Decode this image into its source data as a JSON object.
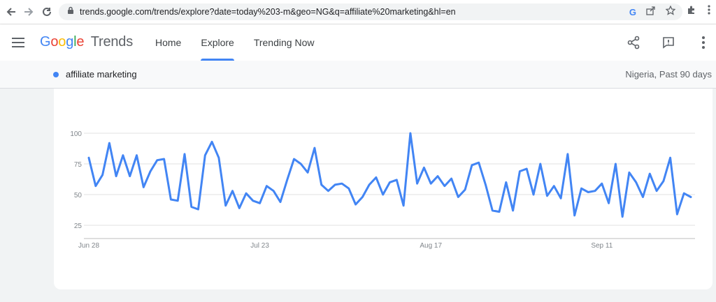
{
  "browser": {
    "url": "trends.google.com/trends/explore?date=today%203-m&geo=NG&q=affiliate%20marketing&hl=en",
    "icons": [
      "back-arrow-icon",
      "forward-arrow-icon",
      "reload-icon",
      "lock-icon",
      "google-lens-icon",
      "share-icon",
      "star-icon",
      "extensions-icon",
      "menu-icon"
    ]
  },
  "header": {
    "logo_google": "Google",
    "logo_trends": "Trends",
    "tabs": [
      {
        "label": "Home",
        "active": false
      },
      {
        "label": "Explore",
        "active": true
      },
      {
        "label": "Trending Now",
        "active": false
      }
    ]
  },
  "term_bar": {
    "term": "affiliate marketing",
    "region": "Nigeria, Past 90 days",
    "color": "#4285f4"
  },
  "chart_data": {
    "type": "line",
    "ylim": [
      0,
      100
    ],
    "yticks": [
      25,
      50,
      75,
      100
    ],
    "xtick_labels": [
      {
        "label": "Jun 28",
        "index": 0
      },
      {
        "label": "Jul 23",
        "index": 25
      },
      {
        "label": "Aug 17",
        "index": 50
      },
      {
        "label": "Sep 11",
        "index": 75
      }
    ],
    "grid": true,
    "series": [
      {
        "color": "#4285f4",
        "values": [
          80,
          57,
          66,
          92,
          65,
          82,
          65,
          82,
          56,
          69,
          78,
          79,
          46,
          45,
          83,
          40,
          38,
          82,
          93,
          80,
          41,
          53,
          39,
          51,
          45,
          43,
          57,
          53,
          44,
          62,
          79,
          75,
          68,
          88,
          58,
          53,
          58,
          59,
          55,
          42,
          48,
          58,
          64,
          50,
          60,
          62,
          41,
          100,
          59,
          72,
          59,
          65,
          57,
          63,
          48,
          54,
          74,
          76,
          58,
          37,
          36,
          60,
          37,
          69,
          71,
          50,
          75,
          49,
          57,
          47,
          83,
          33,
          55,
          52,
          53,
          59,
          43,
          75,
          32,
          68,
          60,
          48,
          67,
          53,
          61,
          80,
          34,
          51,
          48
        ]
      }
    ]
  }
}
